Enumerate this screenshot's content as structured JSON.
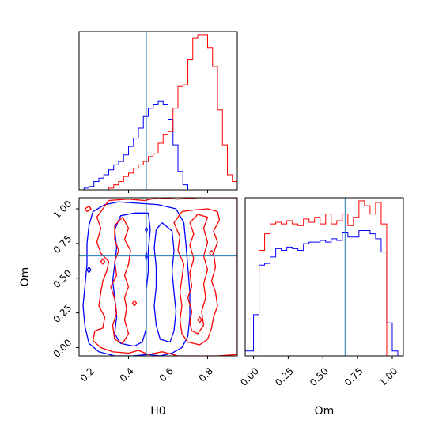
{
  "colors": {
    "series_a": "#0000ff",
    "series_b": "#ff0000",
    "truth": "#1f77b4",
    "frame": "#000000"
  },
  "chart_data": {
    "type": "corner",
    "parameters": [
      "H0",
      "Om"
    ],
    "truths": {
      "H0": 0.49,
      "Om": 0.66
    },
    "axes": {
      "H0": {
        "range": [
          0.15,
          0.95
        ],
        "ticks": [
          0.2,
          0.4,
          0.6,
          0.8
        ],
        "tick_labels": [
          "0.2",
          "0.4",
          "0.6",
          "0.8"
        ],
        "label": "H0"
      },
      "Om": {
        "range": [
          -0.06,
          1.08
        ],
        "ticks": [
          0.0,
          0.25,
          0.5,
          0.75,
          1.0
        ],
        "tick_labels": [
          "0.00",
          "0.25",
          "0.50",
          "0.75",
          "1.00"
        ],
        "label": "Om"
      }
    },
    "hist_H0": {
      "bin_edges": [
        0.15,
        0.175,
        0.2,
        0.225,
        0.25,
        0.275,
        0.3,
        0.325,
        0.35,
        0.375,
        0.4,
        0.425,
        0.45,
        0.475,
        0.5,
        0.525,
        0.55,
        0.575,
        0.6,
        0.625,
        0.65,
        0.675,
        0.7,
        0.725,
        0.75,
        0.775,
        0.8,
        0.825,
        0.85,
        0.875,
        0.9,
        0.925,
        0.95
      ],
      "series": [
        {
          "name": "",
          "color_key": "series_a",
          "counts": [
            0,
            0.01,
            0.02,
            0.05,
            0.07,
            0.09,
            0.12,
            0.15,
            0.17,
            0.21,
            0.26,
            0.31,
            0.37,
            0.44,
            0.49,
            0.51,
            0.53,
            0.51,
            0.42,
            0.27,
            0.11,
            0.03,
            0,
            0,
            0,
            0,
            0,
            0,
            0,
            0,
            0,
            0
          ]
        },
        {
          "name": "",
          "color_key": "series_b",
          "counts": [
            0,
            0,
            0,
            0,
            0,
            0,
            0.01,
            0.03,
            0.05,
            0.08,
            0.1,
            0.13,
            0.15,
            0.17,
            0.2,
            0.22,
            0.28,
            0.33,
            0.35,
            0.49,
            0.62,
            0.63,
            0.78,
            0.91,
            0.93,
            0.93,
            0.85,
            0.74,
            0.48,
            0.27,
            0.09,
            0.05
          ]
        }
      ]
    },
    "hist_Om": {
      "bin_edges": [
        -0.06,
        0.0,
        0.04,
        0.08,
        0.12,
        0.16,
        0.2,
        0.24,
        0.28,
        0.32,
        0.36,
        0.4,
        0.44,
        0.48,
        0.52,
        0.56,
        0.6,
        0.64,
        0.68,
        0.72,
        0.76,
        0.8,
        0.84,
        0.88,
        0.92,
        0.96,
        1.0,
        1.04,
        1.08
      ],
      "series": [
        {
          "name": "",
          "color_key": "series_a",
          "counts": [
            0.03,
            0.25,
            0.55,
            0.56,
            0.6,
            0.65,
            0.64,
            0.66,
            0.65,
            0.64,
            0.68,
            0.69,
            0.69,
            0.7,
            0.69,
            0.71,
            0.7,
            0.75,
            0.72,
            0.72,
            0.76,
            0.76,
            0.74,
            0.71,
            0.63,
            0.2,
            0.03,
            0
          ]
        },
        {
          "name": "",
          "color_key": "series_b",
          "counts": [
            0,
            0,
            0.64,
            0.74,
            0.8,
            0.81,
            0.8,
            0.82,
            0.8,
            0.79,
            0.83,
            0.81,
            0.84,
            0.8,
            0.86,
            0.8,
            0.82,
            0.86,
            0.79,
            0.84,
            0.94,
            0.91,
            0.86,
            0.93,
            0.8,
            0,
            0,
            0
          ]
        }
      ]
    },
    "contours": {
      "series_a": [
        [
          [
            0.55,
            1.03
          ],
          [
            0.45,
            1.04
          ],
          [
            0.35,
            1.05
          ],
          [
            0.28,
            1.03
          ],
          [
            0.22,
            0.98
          ],
          [
            0.2,
            0.88
          ],
          [
            0.19,
            0.75
          ],
          [
            0.19,
            0.6
          ],
          [
            0.18,
            0.45
          ],
          [
            0.17,
            0.3
          ],
          [
            0.18,
            0.15
          ],
          [
            0.2,
            0.03
          ],
          [
            0.25,
            -0.03
          ],
          [
            0.33,
            -0.06
          ],
          [
            0.42,
            -0.06
          ],
          [
            0.5,
            -0.05
          ],
          [
            0.56,
            -0.06
          ],
          [
            0.62,
            -0.04
          ],
          [
            0.67,
            0.0
          ],
          [
            0.7,
            0.08
          ],
          [
            0.71,
            0.22
          ],
          [
            0.71,
            0.4
          ],
          [
            0.7,
            0.58
          ],
          [
            0.69,
            0.75
          ],
          [
            0.68,
            0.9
          ],
          [
            0.64,
            1.0
          ],
          [
            0.55,
            1.03
          ]
        ],
        [
          [
            0.5,
            0.97
          ],
          [
            0.43,
            0.97
          ],
          [
            0.36,
            0.95
          ],
          [
            0.33,
            0.85
          ],
          [
            0.34,
            0.72
          ],
          [
            0.33,
            0.6
          ],
          [
            0.32,
            0.48
          ],
          [
            0.33,
            0.36
          ],
          [
            0.34,
            0.22
          ],
          [
            0.33,
            0.1
          ],
          [
            0.36,
            0.03
          ],
          [
            0.43,
            0.01
          ],
          [
            0.47,
            0.04
          ],
          [
            0.49,
            0.14
          ],
          [
            0.49,
            0.28
          ],
          [
            0.49,
            0.42
          ],
          [
            0.5,
            0.55
          ],
          [
            0.5,
            0.7
          ],
          [
            0.51,
            0.85
          ],
          [
            0.5,
            0.97
          ]
        ],
        [
          [
            0.57,
            0.9
          ],
          [
            0.54,
            0.85
          ],
          [
            0.53,
            0.72
          ],
          [
            0.54,
            0.58
          ],
          [
            0.54,
            0.44
          ],
          [
            0.53,
            0.3
          ],
          [
            0.54,
            0.16
          ],
          [
            0.56,
            0.06
          ],
          [
            0.61,
            0.04
          ],
          [
            0.63,
            0.12
          ],
          [
            0.64,
            0.26
          ],
          [
            0.63,
            0.4
          ],
          [
            0.62,
            0.55
          ],
          [
            0.63,
            0.7
          ],
          [
            0.62,
            0.84
          ],
          [
            0.57,
            0.9
          ]
        ],
        [
          [
            0.49,
            0.69
          ],
          [
            0.495,
            0.66
          ],
          [
            0.49,
            0.63
          ],
          [
            0.485,
            0.66
          ],
          [
            0.49,
            0.69
          ]
        ],
        [
          [
            0.49,
            0.87
          ],
          [
            0.495,
            0.85
          ],
          [
            0.49,
            0.83
          ],
          [
            0.485,
            0.85
          ],
          [
            0.49,
            0.87
          ]
        ],
        [
          [
            0.2,
            0.58
          ],
          [
            0.21,
            0.56
          ],
          [
            0.2,
            0.54
          ],
          [
            0.19,
            0.56
          ],
          [
            0.2,
            0.58
          ]
        ]
      ],
      "series_b": [
        [
          [
            0.3,
            1.06
          ],
          [
            0.4,
            1.07
          ],
          [
            0.48,
            1.06
          ],
          [
            0.55,
            1.08
          ],
          [
            0.65,
            1.07
          ],
          [
            0.75,
            1.08
          ],
          [
            0.85,
            1.08
          ],
          [
            0.95,
            1.08
          ],
          [
            0.95,
            -0.05
          ],
          [
            0.85,
            -0.06
          ],
          [
            0.75,
            -0.06
          ],
          [
            0.65,
            -0.06
          ],
          [
            0.57,
            -0.03
          ],
          [
            0.5,
            -0.05
          ],
          [
            0.45,
            -0.02
          ],
          [
            0.4,
            -0.04
          ],
          [
            0.32,
            -0.03
          ],
          [
            0.26,
            0.0
          ],
          [
            0.22,
            0.05
          ],
          [
            0.23,
            0.12
          ],
          [
            0.27,
            0.14
          ],
          [
            0.28,
            0.22
          ],
          [
            0.25,
            0.3
          ],
          [
            0.26,
            0.4
          ],
          [
            0.27,
            0.48
          ],
          [
            0.29,
            0.55
          ],
          [
            0.3,
            0.62
          ],
          [
            0.26,
            0.68
          ],
          [
            0.24,
            0.76
          ],
          [
            0.26,
            0.86
          ],
          [
            0.24,
            0.94
          ],
          [
            0.27,
            1.0
          ],
          [
            0.3,
            1.06
          ]
        ],
        [
          [
            0.33,
            0.88
          ],
          [
            0.37,
            0.94
          ],
          [
            0.4,
            0.86
          ],
          [
            0.38,
            0.78
          ],
          [
            0.41,
            0.7
          ],
          [
            0.4,
            0.6
          ],
          [
            0.38,
            0.52
          ],
          [
            0.4,
            0.44
          ],
          [
            0.38,
            0.36
          ],
          [
            0.39,
            0.28
          ],
          [
            0.38,
            0.2
          ],
          [
            0.4,
            0.1
          ],
          [
            0.37,
            0.03
          ],
          [
            0.33,
            0.06
          ],
          [
            0.32,
            0.16
          ],
          [
            0.34,
            0.25
          ],
          [
            0.33,
            0.35
          ],
          [
            0.31,
            0.44
          ],
          [
            0.34,
            0.52
          ],
          [
            0.33,
            0.62
          ],
          [
            0.35,
            0.7
          ],
          [
            0.33,
            0.78
          ],
          [
            0.33,
            0.88
          ]
        ],
        [
          [
            0.67,
            0.98
          ],
          [
            0.63,
            0.9
          ],
          [
            0.66,
            0.8
          ],
          [
            0.65,
            0.7
          ],
          [
            0.68,
            0.6
          ],
          [
            0.67,
            0.5
          ],
          [
            0.66,
            0.4
          ],
          [
            0.67,
            0.3
          ],
          [
            0.66,
            0.2
          ],
          [
            0.67,
            0.1
          ],
          [
            0.7,
            0.04
          ],
          [
            0.76,
            0.02
          ],
          [
            0.8,
            0.06
          ],
          [
            0.82,
            0.14
          ],
          [
            0.83,
            0.22
          ],
          [
            0.85,
            0.3
          ],
          [
            0.84,
            0.4
          ],
          [
            0.82,
            0.48
          ],
          [
            0.84,
            0.58
          ],
          [
            0.83,
            0.68
          ],
          [
            0.85,
            0.76
          ],
          [
            0.83,
            0.84
          ],
          [
            0.86,
            0.92
          ],
          [
            0.85,
            0.98
          ],
          [
            0.8,
            1.0
          ],
          [
            0.72,
            0.99
          ],
          [
            0.67,
            0.98
          ]
        ],
        [
          [
            0.71,
            0.9
          ],
          [
            0.73,
            0.82
          ],
          [
            0.71,
            0.74
          ],
          [
            0.73,
            0.64
          ],
          [
            0.71,
            0.54
          ],
          [
            0.72,
            0.44
          ],
          [
            0.7,
            0.36
          ],
          [
            0.72,
            0.26
          ],
          [
            0.71,
            0.18
          ],
          [
            0.72,
            0.12
          ],
          [
            0.75,
            0.1
          ],
          [
            0.78,
            0.16
          ],
          [
            0.77,
            0.26
          ],
          [
            0.79,
            0.36
          ],
          [
            0.78,
            0.46
          ],
          [
            0.8,
            0.56
          ],
          [
            0.78,
            0.66
          ],
          [
            0.8,
            0.76
          ],
          [
            0.78,
            0.86
          ],
          [
            0.8,
            0.94
          ],
          [
            0.75,
            0.96
          ],
          [
            0.71,
            0.9
          ]
        ],
        [
          [
            0.19,
            0.98
          ],
          [
            0.21,
            1.0
          ],
          [
            0.2,
            1.02
          ],
          [
            0.18,
            1.0
          ],
          [
            0.19,
            0.98
          ]
        ],
        [
          [
            0.27,
            0.6
          ],
          [
            0.28,
            0.62
          ],
          [
            0.27,
            0.64
          ],
          [
            0.26,
            0.62
          ],
          [
            0.27,
            0.6
          ]
        ],
        [
          [
            0.43,
            0.3
          ],
          [
            0.44,
            0.32
          ],
          [
            0.43,
            0.34
          ],
          [
            0.42,
            0.32
          ],
          [
            0.43,
            0.3
          ]
        ],
        [
          [
            0.82,
            0.66
          ],
          [
            0.83,
            0.68
          ],
          [
            0.82,
            0.7
          ],
          [
            0.81,
            0.68
          ],
          [
            0.82,
            0.66
          ]
        ],
        [
          [
            0.76,
            0.18
          ],
          [
            0.77,
            0.2
          ],
          [
            0.76,
            0.22
          ],
          [
            0.75,
            0.2
          ],
          [
            0.76,
            0.18
          ]
        ]
      ]
    }
  }
}
